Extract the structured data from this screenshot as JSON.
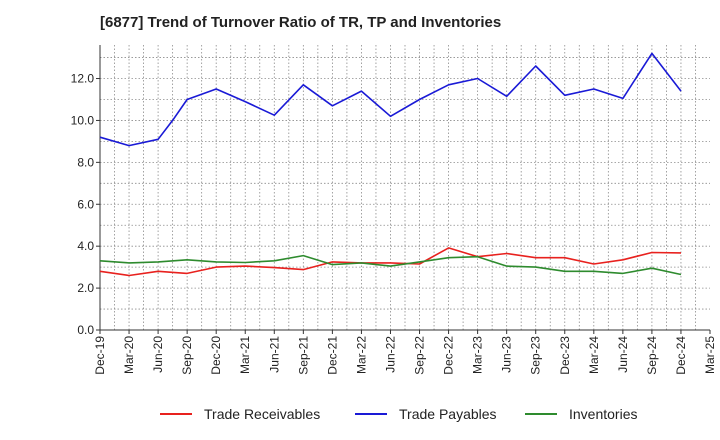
{
  "chart_data": {
    "type": "line",
    "title": "[6877]  Trend of Turnover Ratio of TR, TP and Inventories",
    "categories": [
      "Dec-19",
      "Mar-20",
      "Jun-20",
      "Sep-20",
      "Dec-20",
      "Mar-21",
      "Jun-21",
      "Sep-21",
      "Dec-21",
      "Mar-22",
      "Jun-22",
      "Sep-22",
      "Dec-22",
      "Mar-23",
      "Jun-23",
      "Sep-23",
      "Dec-23",
      "Mar-24",
      "Jun-24",
      "Sep-24",
      "Dec-24",
      "Mar-25"
    ],
    "x_points": [
      "Dec-19",
      "Feb-20",
      "Mar-20",
      "May-20",
      "Jun-20",
      "Aug-20",
      "Sep-20",
      "Nov-20",
      "Dec-20",
      "Feb-21",
      "Mar-21",
      "May-21",
      "Jun-21",
      "Aug-21",
      "Sep-21",
      "Nov-21",
      "Dec-21",
      "Feb-22",
      "Mar-22",
      "May-22",
      "Jun-22",
      "Aug-22",
      "Sep-22",
      "Nov-22",
      "Dec-22",
      "Feb-23",
      "Mar-23",
      "May-23",
      "Jun-23",
      "Aug-23",
      "Sep-23",
      "Nov-23",
      "Dec-23",
      "Feb-24",
      "Mar-24",
      "May-24",
      "Jun-24",
      "Aug-24",
      "Sep-24",
      "Nov-24",
      "Dec-24"
    ],
    "ylim": [
      0,
      13.6
    ],
    "yticks": [
      "0.0",
      "2.0",
      "4.0",
      "6.0",
      "8.0",
      "10.0",
      "12.0"
    ],
    "ytick_values": [
      0,
      2,
      4,
      6,
      8,
      10,
      12
    ],
    "grid": true,
    "legend_position": "bottom",
    "series": [
      {
        "name": "Trade Receivables",
        "color": "#e8211e",
        "points": [
          [
            0,
            2.8
          ],
          [
            1,
            2.6
          ],
          [
            2,
            2.8
          ],
          [
            3,
            2.7
          ],
          [
            4,
            3.0
          ],
          [
            5,
            3.05
          ],
          [
            6,
            2.98
          ],
          [
            7,
            2.88
          ],
          [
            8,
            3.25
          ],
          [
            9,
            3.2
          ],
          [
            10,
            3.2
          ],
          [
            11,
            3.15
          ],
          [
            12,
            3.92
          ],
          [
            13,
            3.5
          ],
          [
            14,
            3.65
          ],
          [
            15,
            3.45
          ],
          [
            16,
            3.45
          ],
          [
            17,
            3.15
          ],
          [
            18,
            3.35
          ],
          [
            19,
            3.7
          ],
          [
            20,
            3.68
          ]
        ]
      },
      {
        "name": "Trade Payables",
        "color": "#1a1ad6",
        "points": [
          [
            0,
            9.2
          ],
          [
            1,
            8.8
          ],
          [
            2,
            9.1
          ],
          [
            2.5,
            10.0
          ],
          [
            3,
            11.0
          ],
          [
            4,
            11.5
          ],
          [
            5,
            10.9
          ],
          [
            6,
            10.25
          ],
          [
            7,
            11.7
          ],
          [
            8,
            10.7
          ],
          [
            9,
            11.4
          ],
          [
            10,
            10.2
          ],
          [
            11,
            11.0
          ],
          [
            12,
            11.7
          ],
          [
            13,
            12.0
          ],
          [
            14,
            11.15
          ],
          [
            15,
            12.6
          ],
          [
            16,
            11.2
          ],
          [
            17,
            11.5
          ],
          [
            18,
            11.05
          ],
          [
            19,
            13.2
          ],
          [
            20,
            11.4
          ]
        ]
      },
      {
        "name": "Inventories",
        "color": "#2e8b2e",
        "points": [
          [
            0,
            3.3
          ],
          [
            1,
            3.2
          ],
          [
            2,
            3.25
          ],
          [
            3,
            3.35
          ],
          [
            4,
            3.25
          ],
          [
            5,
            3.22
          ],
          [
            6,
            3.3
          ],
          [
            7,
            3.55
          ],
          [
            8,
            3.12
          ],
          [
            9,
            3.2
          ],
          [
            10,
            3.05
          ],
          [
            11,
            3.25
          ],
          [
            12,
            3.45
          ],
          [
            13,
            3.5
          ],
          [
            14,
            3.05
          ],
          [
            15,
            3.0
          ],
          [
            16,
            2.8
          ],
          [
            17,
            2.8
          ],
          [
            18,
            2.7
          ],
          [
            19,
            2.95
          ],
          [
            20,
            2.65
          ]
        ]
      }
    ]
  }
}
